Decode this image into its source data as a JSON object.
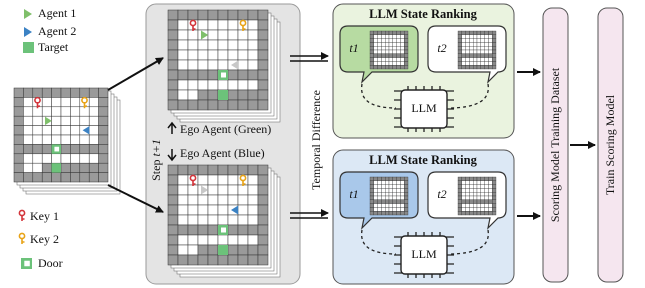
{
  "legend_top": [
    "Agent 1",
    "Agent 2",
    "Target"
  ],
  "legend_bottom": [
    "Key 1",
    "Key 2",
    "Door"
  ],
  "step_panel": {
    "label": "Step ",
    "label_var": "t+1",
    "ego_green": "Ego Agent (Green)",
    "ego_blue": "Ego Agent (Blue)"
  },
  "temporal_difference": "Temporal Difference",
  "ranking_panels": [
    {
      "title": "LLM State Ranking",
      "bubble_1": "t1",
      "bubble_2": "t2",
      "chip": "LLM"
    },
    {
      "title": "LLM State Ranking",
      "bubble_1": "t1",
      "bubble_2": "t2",
      "chip": "LLM"
    }
  ],
  "dataset": "Scoring Model Training Dataset",
  "train": "Train Scoring Model"
}
